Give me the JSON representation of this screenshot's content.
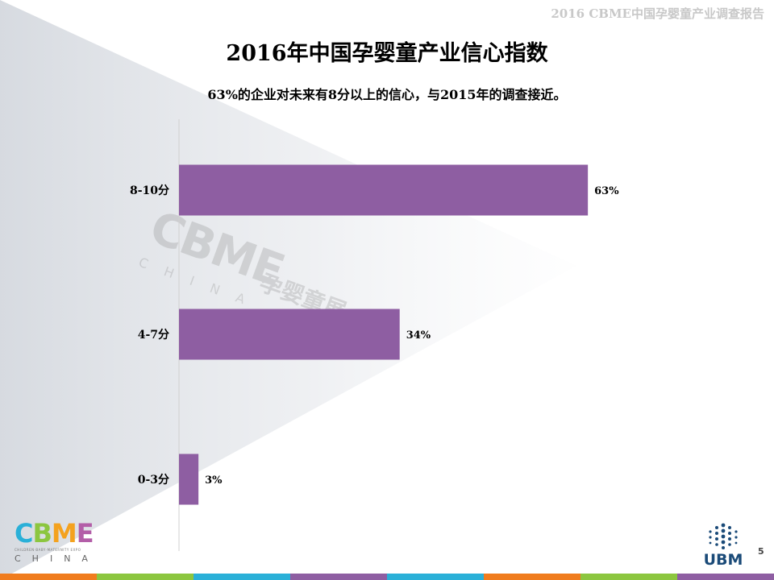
{
  "header": {
    "report_title": "2016 CBME中国孕婴童产业调查报告"
  },
  "page_number": "5",
  "logos": {
    "cbme": {
      "letters": [
        "C",
        "B",
        "M",
        "E"
      ],
      "small_text": "CHILDREN·BABY·MATERNITY EXPO",
      "country": "CHINA"
    },
    "ubm": {
      "text": "UBM"
    },
    "watermark": {
      "logo": "CBME",
      "cn": "孕婴童展",
      "country": "CHINA"
    }
  },
  "chart_data": {
    "type": "bar",
    "orientation": "horizontal",
    "title": "2016年中国孕婴童产业信心指数",
    "subtitle": "63%的企业对未来有8分以上的信心，与2015年的调查接近。",
    "categories": [
      "8-10分",
      "4-7分",
      "0-3分"
    ],
    "values": [
      63,
      34,
      3
    ],
    "value_labels": [
      "63%",
      "34%",
      "3%"
    ],
    "xlim": [
      0,
      100
    ],
    "grid": false,
    "legend": "none",
    "bar_color": "#8e5ea2"
  },
  "colors": {
    "bar": "#8e5ea2",
    "bottom_bar": [
      "#f07c1e",
      "#8cc63f",
      "#2ab0d8",
      "#8e5ea2",
      "#2ab0d8",
      "#f07c1e",
      "#8cc63f",
      "#8e5ea2"
    ]
  }
}
